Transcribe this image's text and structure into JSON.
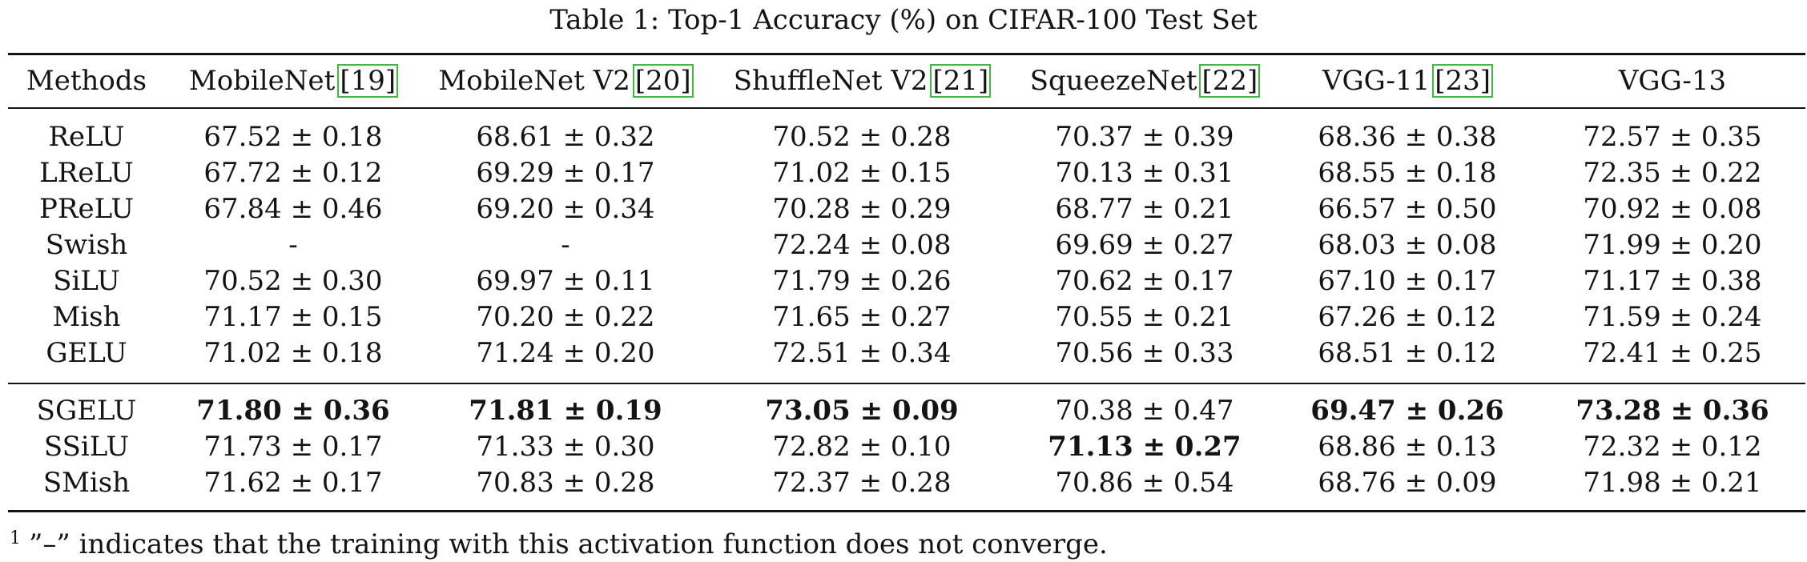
{
  "caption": "Table 1: Top-1 Accuracy (%) on CIFAR-100 Test Set",
  "header": [
    {
      "name": "Methods",
      "ref": ""
    },
    {
      "name": "MobileNet",
      "ref": "[19]"
    },
    {
      "name": "MobileNet V2",
      "ref": "[20]"
    },
    {
      "name": "ShuffleNet V2",
      "ref": "[21]"
    },
    {
      "name": "SqueezeNet",
      "ref": "[22]"
    },
    {
      "name": "VGG-11",
      "ref": "[23]"
    },
    {
      "name": "VGG-13",
      "ref": ""
    }
  ],
  "rows": [
    {
      "method": "ReLU",
      "cells": [
        {
          "v": "67.52 ± 0.18",
          "b": false
        },
        {
          "v": "68.61 ± 0.32",
          "b": false
        },
        {
          "v": "70.52 ± 0.28",
          "b": false
        },
        {
          "v": "70.37 ± 0.39",
          "b": false
        },
        {
          "v": "68.36 ± 0.38",
          "b": false
        },
        {
          "v": "72.57 ± 0.35",
          "b": false
        }
      ]
    },
    {
      "method": "LReLU",
      "cells": [
        {
          "v": "67.72 ± 0.12",
          "b": false
        },
        {
          "v": "69.29 ± 0.17",
          "b": false
        },
        {
          "v": "71.02 ± 0.15",
          "b": false
        },
        {
          "v": "70.13 ± 0.31",
          "b": false
        },
        {
          "v": "68.55 ± 0.18",
          "b": false
        },
        {
          "v": "72.35 ± 0.22",
          "b": false
        }
      ]
    },
    {
      "method": "PReLU",
      "cells": [
        {
          "v": "67.84 ± 0.46",
          "b": false
        },
        {
          "v": "69.20 ± 0.34",
          "b": false
        },
        {
          "v": "70.28 ± 0.29",
          "b": false
        },
        {
          "v": "68.77 ± 0.21",
          "b": false
        },
        {
          "v": "66.57 ± 0.50",
          "b": false
        },
        {
          "v": "70.92 ± 0.08",
          "b": false
        }
      ]
    },
    {
      "method": "Swish",
      "cells": [
        {
          "v": "-",
          "b": false
        },
        {
          "v": "-",
          "b": false
        },
        {
          "v": "72.24 ± 0.08",
          "b": false
        },
        {
          "v": "69.69 ± 0.27",
          "b": false
        },
        {
          "v": "68.03 ± 0.08",
          "b": false
        },
        {
          "v": "71.99 ± 0.20",
          "b": false
        }
      ]
    },
    {
      "method": "SiLU",
      "cells": [
        {
          "v": "70.52 ± 0.30",
          "b": false
        },
        {
          "v": "69.97 ± 0.11",
          "b": false
        },
        {
          "v": "71.79 ± 0.26",
          "b": false
        },
        {
          "v": "70.62 ± 0.17",
          "b": false
        },
        {
          "v": "67.10 ± 0.17",
          "b": false
        },
        {
          "v": "71.17 ± 0.38",
          "b": false
        }
      ]
    },
    {
      "method": "Mish",
      "cells": [
        {
          "v": "71.17 ± 0.15",
          "b": false
        },
        {
          "v": "70.20 ± 0.22",
          "b": false
        },
        {
          "v": "71.65 ± 0.27",
          "b": false
        },
        {
          "v": "70.55 ± 0.21",
          "b": false
        },
        {
          "v": "67.26 ± 0.12",
          "b": false
        },
        {
          "v": "71.59 ± 0.24",
          "b": false
        }
      ]
    },
    {
      "method": "GELU",
      "cells": [
        {
          "v": "71.02 ± 0.18",
          "b": false
        },
        {
          "v": "71.24 ± 0.20",
          "b": false
        },
        {
          "v": "72.51 ± 0.34",
          "b": false
        },
        {
          "v": "70.56 ± 0.33",
          "b": false
        },
        {
          "v": "68.51 ± 0.12",
          "b": false
        },
        {
          "v": "72.41 ± 0.25",
          "b": false
        }
      ]
    },
    {
      "method": "SGELU",
      "cells": [
        {
          "v": "71.80 ± 0.36",
          "b": true
        },
        {
          "v": "71.81 ± 0.19",
          "b": true
        },
        {
          "v": "73.05 ± 0.09",
          "b": true
        },
        {
          "v": "70.38 ± 0.47",
          "b": false
        },
        {
          "v": "69.47 ± 0.26",
          "b": true
        },
        {
          "v": "73.28 ± 0.36",
          "b": true
        }
      ]
    },
    {
      "method": "SSiLU",
      "cells": [
        {
          "v": "71.73 ± 0.17",
          "b": false
        },
        {
          "v": "71.33 ± 0.30",
          "b": false
        },
        {
          "v": "72.82 ± 0.10",
          "b": false
        },
        {
          "v": "71.13 ± 0.27",
          "b": true
        },
        {
          "v": "68.86 ± 0.13",
          "b": false
        },
        {
          "v": "72.32 ± 0.12",
          "b": false
        }
      ]
    },
    {
      "method": "SMish",
      "cells": [
        {
          "v": "71.62 ± 0.17",
          "b": false
        },
        {
          "v": "70.83 ± 0.28",
          "b": false
        },
        {
          "v": "72.37 ± 0.28",
          "b": false
        },
        {
          "v": "70.86 ± 0.54",
          "b": false
        },
        {
          "v": "68.76 ± 0.09",
          "b": false
        },
        {
          "v": "71.98 ± 0.21",
          "b": false
        }
      ]
    }
  ],
  "footnote": {
    "mark": "1",
    "text": "”–” indicates that the training with this activation function does not converge."
  },
  "colors": {
    "text": "#141414",
    "ref_box": "#3dbb3d"
  }
}
